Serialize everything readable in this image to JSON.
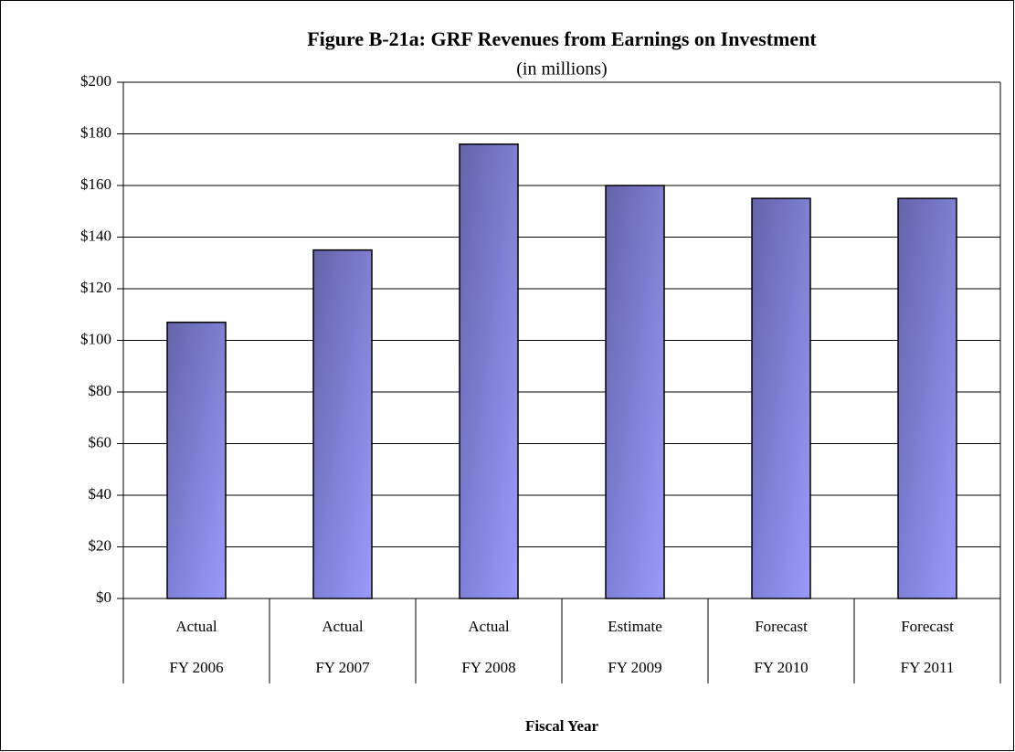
{
  "chart_data": {
    "type": "bar",
    "title": "Figure B-21a: GRF Revenues from Earnings on Investment",
    "subtitle": "(in millions)",
    "x_label": "Fiscal Year",
    "category_groups": [
      "Actual",
      "Actual",
      "Actual",
      "Estimate",
      "Forecast",
      "Forecast"
    ],
    "categories": [
      "FY 2006",
      "FY 2007",
      "FY 2008",
      "FY 2009",
      "FY 2010",
      "FY 2011"
    ],
    "values": [
      107,
      135,
      176,
      160,
      155,
      155
    ],
    "color": "#8080e0",
    "ylim": [
      0,
      200
    ],
    "yticks": [
      {
        "value": 0,
        "label": "$0"
      },
      {
        "value": 20,
        "label": "$20"
      },
      {
        "value": 40,
        "label": "$40"
      },
      {
        "value": 60,
        "label": "$60"
      },
      {
        "value": 80,
        "label": "$80"
      },
      {
        "value": 100,
        "label": "$100"
      },
      {
        "value": 120,
        "label": "$120"
      },
      {
        "value": 140,
        "label": "$140"
      },
      {
        "value": 160,
        "label": "$160"
      },
      {
        "value": 180,
        "label": "$180"
      },
      {
        "value": 200,
        "label": "$200"
      }
    ],
    "grid": true
  }
}
